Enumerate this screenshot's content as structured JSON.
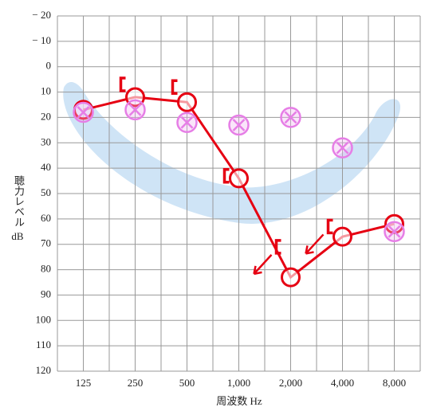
{
  "chart_data": {
    "type": "audiogram",
    "y_label": "聴力レベル",
    "y_unit": "dB",
    "x_label": "周波数 Hz",
    "categories": [
      "125",
      "250",
      "500",
      "1,000",
      "2,000",
      "4,000",
      "8,000"
    ],
    "ylim": [
      -20,
      120
    ],
    "y_inverted": true,
    "yticks": [
      {
        "value": -20,
        "label": "− 20"
      },
      {
        "value": -10,
        "label": "− 10"
      },
      0,
      10,
      20,
      30,
      40,
      50,
      60,
      70,
      80,
      90,
      100,
      110,
      120
    ],
    "grid": true,
    "series": [
      {
        "color": "#e60012",
        "marker": "circle",
        "line": true,
        "values": [
          17,
          12,
          14,
          44,
          83,
          67,
          62
        ]
      },
      {
        "color": "#e67ee6",
        "marker": "circle-x",
        "line": false,
        "values": [
          18,
          17,
          22,
          23,
          20,
          32,
          65
        ]
      },
      {
        "color": "#e60012",
        "marker": "bracket",
        "line": false,
        "values": [
          null,
          7,
          8,
          43,
          71,
          63,
          null
        ],
        "arrows": [
          false,
          false,
          false,
          false,
          true,
          true,
          false
        ]
      }
    ]
  }
}
